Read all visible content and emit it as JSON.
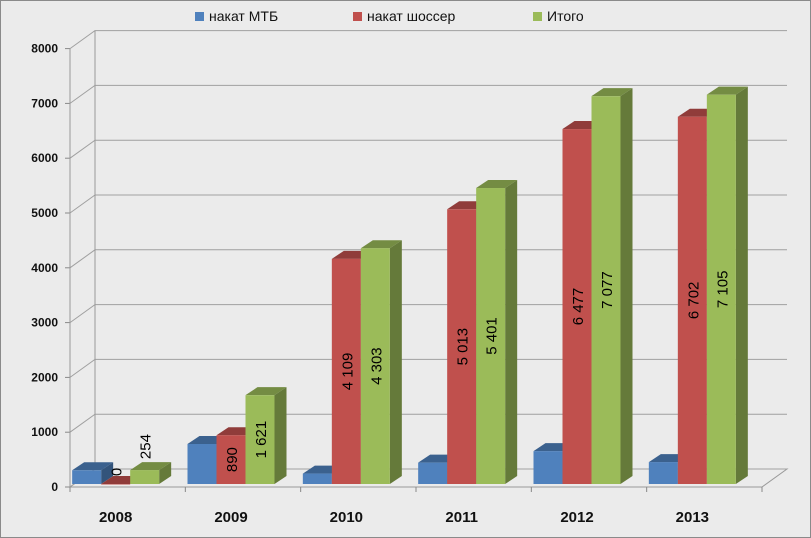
{
  "chart_data": {
    "type": "bar",
    "style": "3d-clustered-column",
    "title": "",
    "xlabel": "",
    "ylabel": "",
    "categories": [
      "2008",
      "2009",
      "2010",
      "2011",
      "2012",
      "2013"
    ],
    "ylim": [
      0,
      8000
    ],
    "yticks": [
      0,
      1000,
      2000,
      3000,
      4000,
      5000,
      6000,
      7000,
      8000
    ],
    "grid": true,
    "legend_position": "top",
    "series": [
      {
        "name": "накат МТБ",
        "color": "#4f81bd",
        "values": [
          250,
          730,
          190,
          390,
          600,
          400
        ],
        "labels": null
      },
      {
        "name": "накат шоссер",
        "color": "#c0504d",
        "values": [
          0,
          890,
          4109,
          5013,
          6477,
          6702
        ],
        "labels": [
          "0",
          "890",
          "4 109",
          "5 013",
          "6 477",
          "6 702"
        ]
      },
      {
        "name": "Итого",
        "color": "#9bbb59",
        "values": [
          254,
          1621,
          4303,
          5401,
          7077,
          7105
        ],
        "labels": [
          "254",
          "1 621",
          "4 303",
          "5 401",
          "7 077",
          "7 105"
        ]
      }
    ]
  }
}
